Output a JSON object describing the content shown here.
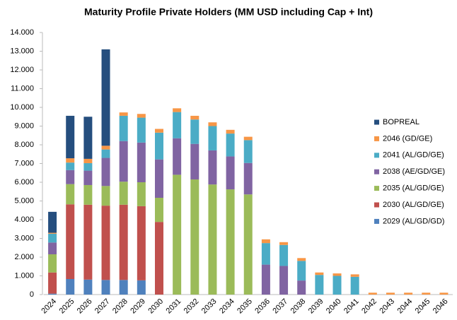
{
  "chart_data": {
    "type": "bar",
    "stacked": true,
    "title": "Maturity Profile Private Holders (MM USD including Cap + Int)",
    "categories": [
      "2024",
      "2025",
      "2026",
      "2027",
      "2028",
      "2029",
      "2030",
      "2031",
      "2032",
      "2033",
      "2034",
      "2035",
      "2036",
      "2037",
      "2038",
      "2039",
      "2040",
      "2041",
      "2042",
      "2043",
      "2044",
      "2045",
      "2046"
    ],
    "series": [
      {
        "name": "2029 (AL/GD/GD)",
        "color": "#4f81bd",
        "values": [
          50,
          830,
          800,
          780,
          780,
          760,
          0,
          0,
          0,
          0,
          0,
          0,
          0,
          0,
          0,
          0,
          0,
          0,
          0,
          0,
          0,
          0,
          0
        ]
      },
      {
        "name": "2030 (AL/GD/GE)",
        "color": "#c0504d",
        "values": [
          1130,
          3990,
          4000,
          3970,
          4020,
          3960,
          3880,
          0,
          0,
          0,
          0,
          0,
          0,
          0,
          0,
          0,
          0,
          0,
          0,
          0,
          0,
          0,
          0
        ]
      },
      {
        "name": "2035 (AL/GD/GE)",
        "color": "#9bbb59",
        "values": [
          970,
          1080,
          1050,
          1050,
          1230,
          1280,
          1290,
          6400,
          6150,
          5880,
          5620,
          5350,
          0,
          0,
          0,
          0,
          0,
          0,
          0,
          0,
          0,
          0,
          0
        ]
      },
      {
        "name": "2038 (AE/GD/GE)",
        "color": "#8064a2",
        "values": [
          630,
          750,
          770,
          1500,
          2170,
          2120,
          2050,
          1950,
          1900,
          1820,
          1760,
          1680,
          1600,
          1530,
          750,
          0,
          0,
          0,
          0,
          0,
          0,
          0,
          0
        ]
      },
      {
        "name": "2041 (AL/GD/GE)",
        "color": "#4bacc6",
        "values": [
          470,
          400,
          400,
          450,
          1350,
          1330,
          1430,
          1400,
          1300,
          1300,
          1220,
          1220,
          1150,
          1120,
          1050,
          1050,
          1000,
          950,
          0,
          0,
          0,
          0,
          0
        ]
      },
      {
        "name": "2046 (GD/GE)",
        "color": "#f79646",
        "values": [
          50,
          230,
          230,
          200,
          180,
          200,
          200,
          200,
          200,
          200,
          200,
          180,
          200,
          150,
          150,
          130,
          130,
          130,
          100,
          100,
          100,
          100,
          100
        ]
      },
      {
        "name": "BOPREAL",
        "color": "#254e7e",
        "values": [
          1120,
          2270,
          2250,
          5150,
          0,
          0,
          0,
          0,
          0,
          0,
          0,
          0,
          0,
          0,
          0,
          0,
          0,
          0,
          0,
          0,
          0,
          0,
          0
        ]
      }
    ],
    "ylim": [
      0,
      14000
    ],
    "yticks": [
      0,
      {
        "value": 1000,
        "label": "1.000"
      },
      {
        "value": 2000,
        "label": "2.000"
      },
      {
        "value": 3000,
        "label": "3.000"
      },
      {
        "value": 4000,
        "label": "4.000"
      },
      {
        "value": 5000,
        "label": "5.000"
      },
      {
        "value": 6000,
        "label": "6.000"
      },
      {
        "value": 7000,
        "label": "7.000"
      },
      {
        "value": 8000,
        "label": "8.000"
      },
      {
        "value": 9000,
        "label": "9.000"
      },
      {
        "value": 10000,
        "label": "10.000"
      },
      {
        "value": 11000,
        "label": "11.000"
      },
      {
        "value": 12000,
        "label": "12.000"
      },
      {
        "value": 13000,
        "label": "13.000"
      },
      {
        "value": 14000,
        "label": "14.000"
      }
    ],
    "grid": false,
    "legend": "right"
  }
}
